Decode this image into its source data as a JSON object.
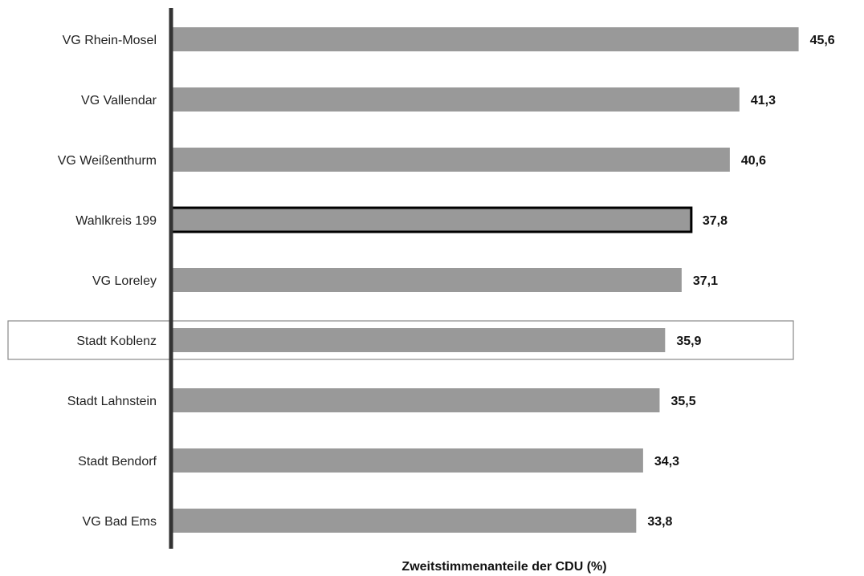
{
  "chart_data": {
    "type": "bar",
    "orientation": "horizontal",
    "title": "",
    "xlabel": "Zweitstimmenanteile der CDU  (%)",
    "ylabel": "",
    "xlim": [
      0,
      46.5
    ],
    "grid": false,
    "legend": "none",
    "categories": [
      "VG Rhein-Mosel",
      "VG Vallendar",
      "VG Weißenthurm",
      "Wahlkreis 199",
      "VG Loreley",
      "Stadt Koblenz",
      "Stadt Lahnstein",
      "Stadt Bendorf",
      "VG Bad Ems"
    ],
    "values": [
      45.6,
      41.3,
      40.6,
      37.8,
      37.1,
      35.9,
      35.5,
      34.3,
      33.8
    ],
    "value_labels": [
      "45,6",
      "41,3",
      "40,6",
      "37,8",
      "37,1",
      "35,9",
      "35,5",
      "34,3",
      "33,8"
    ],
    "highlight": {
      "outlined_bar": "Wahlkreis 199",
      "boxed_row": "Stadt Koblenz"
    },
    "colors": {
      "bar": "#999999",
      "axis": "#333333",
      "outline": "#000000",
      "box": "#888888"
    }
  }
}
